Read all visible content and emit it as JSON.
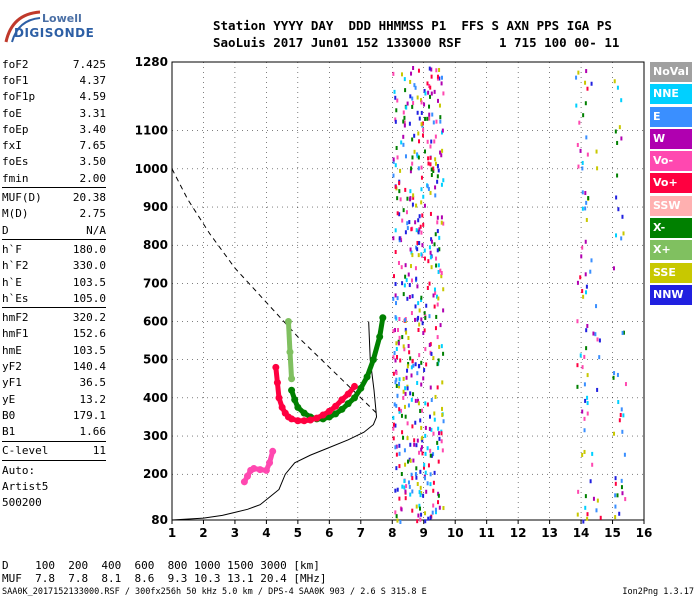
{
  "logo": {
    "line1": "Lowell",
    "line2": "DIGISONDE"
  },
  "header": {
    "line1": "Station YYYY DAY  DDD HHMMSS P1  FFS S AXN PPS IGA PS",
    "line2": "SaoLuis 2017 Jun01 152 133000 RSF     1 715 100 00- 11"
  },
  "params": [
    {
      "label": "foF2",
      "value": "7.425"
    },
    {
      "label": "foF1",
      "value": "4.37"
    },
    {
      "label": "foF1p",
      "value": "4.59"
    },
    {
      "label": "foE",
      "value": "3.31"
    },
    {
      "label": "foEp",
      "value": "3.40"
    },
    {
      "label": "fxI",
      "value": "7.65"
    },
    {
      "label": "foEs",
      "value": "3.50"
    },
    {
      "label": "fmin",
      "value": "2.00"
    },
    {
      "sep": true
    },
    {
      "label": "MUF(D)",
      "value": "20.38"
    },
    {
      "label": "M(D)",
      "value": "2.75"
    },
    {
      "label": "D",
      "value": "N/A"
    },
    {
      "sep": true
    },
    {
      "label": "h`F",
      "value": "180.0"
    },
    {
      "label": "h`F2",
      "value": "330.0"
    },
    {
      "label": "h`E",
      "value": "103.5"
    },
    {
      "label": "h`Es",
      "value": "105.0"
    },
    {
      "sep": true
    },
    {
      "label": "hmF2",
      "value": "320.2"
    },
    {
      "label": "hmF1",
      "value": "152.6"
    },
    {
      "label": "hmE",
      "value": "103.5"
    },
    {
      "label": "yF2",
      "value": "140.4"
    },
    {
      "label": "yF1",
      "value": "36.5"
    },
    {
      "label": "yE",
      "value": "13.2"
    },
    {
      "label": "B0",
      "value": "179.1"
    },
    {
      "label": "B1",
      "value": "1.66"
    },
    {
      "sep": true
    },
    {
      "label": "C-level",
      "value": "11"
    },
    {
      "sep": true
    },
    {
      "label": "Auto:",
      "value": ""
    },
    {
      "label": "Artist5",
      "value": ""
    },
    {
      "label": "500200",
      "value": ""
    }
  ],
  "legend": [
    {
      "label": "NoVal",
      "color": "#a0a0a0"
    },
    {
      "label": "NNE",
      "color": "#00d0ff"
    },
    {
      "label": "E",
      "color": "#3a8fff"
    },
    {
      "label": "W",
      "color": "#b000b0"
    },
    {
      "label": "Vo-",
      "color": "#ff48b0"
    },
    {
      "label": "Vo+",
      "color": "#ff0040"
    },
    {
      "label": "SSW",
      "color": "#ffb0b0"
    },
    {
      "label": "X-",
      "color": "#008000"
    },
    {
      "label": "X+",
      "color": "#80c060"
    },
    {
      "label": "SSE",
      "color": "#c8c800"
    },
    {
      "label": "NNW",
      "color": "#2020e0"
    }
  ],
  "chart_data": {
    "type": "scatter",
    "x_ticks": [
      "1",
      "2",
      "3",
      "4",
      "5",
      "6",
      "7",
      "8",
      "9",
      "10",
      "11",
      "12",
      "13",
      "14",
      "15",
      "16"
    ],
    "y_ticks": [
      "80",
      "200",
      "300",
      "400",
      "500",
      "600",
      "700",
      "800",
      "900",
      "1000",
      "1100",
      "1280"
    ],
    "xlim": [
      1,
      16
    ],
    "ylim": [
      80,
      1280
    ],
    "grid": true,
    "series": [
      {
        "name": "X-",
        "color": "#008000",
        "x": [
          4.8,
          4.9,
          5.0,
          5.2,
          5.4,
          5.6,
          5.8,
          6.0,
          6.2,
          6.4,
          6.6,
          6.8,
          7.0,
          7.2,
          7.4,
          7.6,
          7.7
        ],
        "y": [
          420,
          395,
          375,
          360,
          350,
          345,
          345,
          350,
          358,
          370,
          385,
          400,
          425,
          455,
          500,
          560,
          610
        ]
      },
      {
        "name": "X+",
        "color": "#80c060",
        "x": [
          4.7,
          4.75,
          4.8
        ],
        "y": [
          600,
          520,
          450
        ]
      },
      {
        "name": "Vo+",
        "color": "#ff0040",
        "x": [
          4.3,
          4.35,
          4.4,
          4.5,
          4.6,
          4.7,
          4.8,
          5.0,
          5.2,
          5.4,
          5.6,
          5.8,
          6.0,
          6.2,
          6.4,
          6.6,
          6.8
        ],
        "y": [
          480,
          440,
          400,
          375,
          360,
          350,
          345,
          340,
          340,
          342,
          347,
          355,
          365,
          378,
          395,
          410,
          430
        ]
      },
      {
        "name": "Vo-",
        "color": "#ff48b0",
        "x": [
          3.3,
          3.4,
          3.5,
          3.6,
          3.8,
          4.0,
          4.1,
          4.2
        ],
        "y": [
          180,
          195,
          210,
          215,
          212,
          210,
          230,
          260
        ]
      }
    ],
    "profile": {
      "x": [
        1,
        2,
        2.6,
        3.0,
        3.4,
        3.8,
        4.1,
        4.4,
        4.6,
        4.9,
        5.4,
        6.0,
        6.6,
        7.1,
        7.4,
        7.5,
        7.42,
        7.3,
        7.25
      ],
      "y": [
        80,
        85,
        92,
        100,
        108,
        120,
        140,
        160,
        200,
        230,
        250,
        270,
        290,
        310,
        330,
        350,
        420,
        500,
        600
      ]
    },
    "dashed": {
      "x": [
        1,
        1.5,
        2.2,
        3.0,
        4.0,
        5.0,
        6.0,
        7.0,
        7.5
      ],
      "y": [
        1000,
        920,
        830,
        740,
        650,
        560,
        480,
        400,
        360
      ]
    }
  },
  "dtable": {
    "line1": "D    100  200  400  600  800 1000 1500 3000 [km]",
    "line2": "MUF  7.8  7.8  8.1  8.6  9.3 10.3 13.1 20.4 [MHz]"
  },
  "footer": "SAA0K_2017152133000.RSF / 300fx256h 50 kHz 5.0 km / DPS-4 SAA0K 903 / 2.6 S 315.8 E",
  "footer_right": "Ion2Png 1.3.17"
}
